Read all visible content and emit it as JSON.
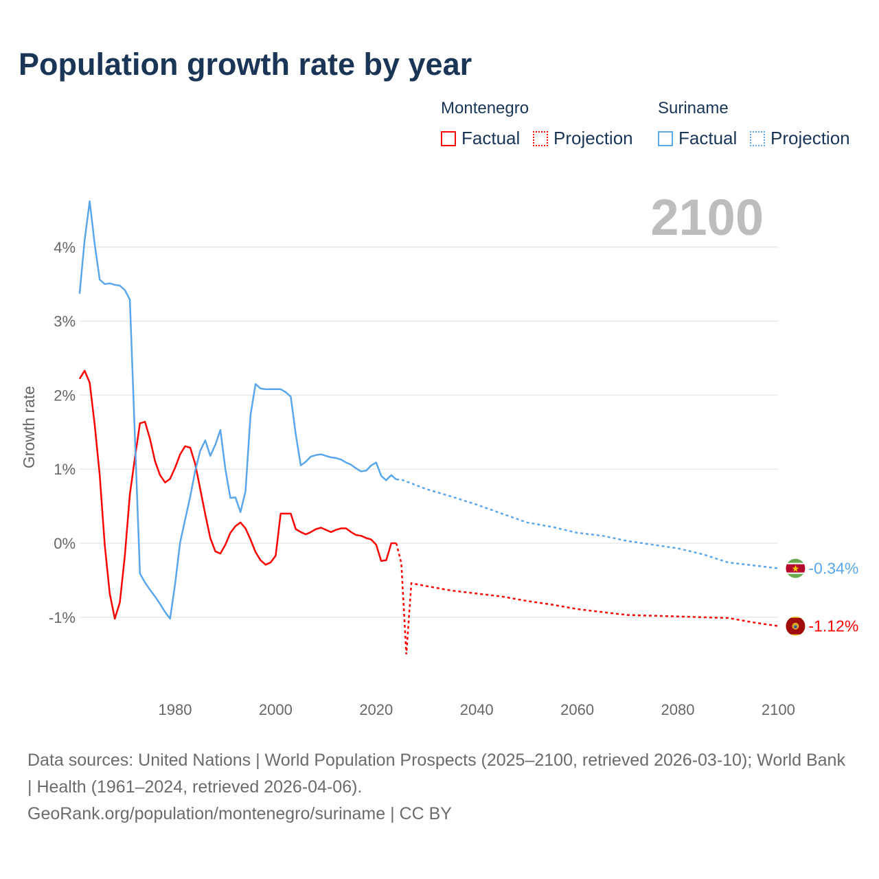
{
  "title": "Population growth rate by year",
  "legend": {
    "groups": [
      {
        "name": "Montenegro",
        "color": "#ff0000",
        "factual": "Factual",
        "projection": "Projection"
      },
      {
        "name": "Suriname",
        "color": "#5aa6eb",
        "factual": "Factual",
        "projection": "Projection"
      }
    ]
  },
  "year_watermark": "2100",
  "footer": {
    "sources": "Data sources: United Nations | World Population Prospects (2025–2100, retrieved 2026-03-10); World Bank | Health (1961–2024, retrieved 2026-04-06).",
    "credit": "GeoRank.org/population/montenegro/suriname | CC BY"
  },
  "chart_data": {
    "type": "line",
    "title": "Population growth rate by year",
    "xlabel": "",
    "ylabel": "Growth rate",
    "xlim": [
      1961,
      2100
    ],
    "ylim": [
      -1.8,
      4.8
    ],
    "x_ticks": [
      1980,
      2000,
      2020,
      2040,
      2060,
      2080,
      2100
    ],
    "y_ticks": [
      -1,
      0,
      1,
      2,
      3,
      4
    ],
    "y_tick_labels": [
      "-1%",
      "0%",
      "1%",
      "2%",
      "3%",
      "4%"
    ],
    "grid": true,
    "series": [
      {
        "name": "Montenegro",
        "color": "#ff0000",
        "flag": "montenegro-flag",
        "end_label": "-1.12%",
        "factual": {
          "x": [
            1961,
            1962,
            1963,
            1964,
            1965,
            1966,
            1967,
            1968,
            1969,
            1970,
            1971,
            1972,
            1973,
            1974,
            1975,
            1976,
            1977,
            1978,
            1979,
            1980,
            1981,
            1982,
            1983,
            1984,
            1985,
            1986,
            1987,
            1988,
            1989,
            1990,
            1991,
            1992,
            1993,
            1994,
            1995,
            1996,
            1997,
            1998,
            1999,
            2000,
            2001,
            2002,
            2003,
            2004,
            2005,
            2006,
            2007,
            2008,
            2009,
            2010,
            2011,
            2012,
            2013,
            2014,
            2015,
            2016,
            2017,
            2018,
            2019,
            2020,
            2021,
            2022,
            2023,
            2024
          ],
          "y": [
            2.22,
            2.33,
            2.17,
            1.6,
            0.92,
            -0.02,
            -0.68,
            -1.02,
            -0.8,
            -0.17,
            0.66,
            1.15,
            1.62,
            1.64,
            1.41,
            1.11,
            0.92,
            0.82,
            0.87,
            1.02,
            1.2,
            1.31,
            1.29,
            1.07,
            0.73,
            0.39,
            0.07,
            -0.11,
            -0.14,
            -0.02,
            0.14,
            0.23,
            0.28,
            0.2,
            0.05,
            -0.12,
            -0.23,
            -0.29,
            -0.26,
            -0.17,
            0.4,
            0.4,
            0.4,
            0.19,
            0.15,
            0.12,
            0.15,
            0.19,
            0.21,
            0.18,
            0.15,
            0.18,
            0.2,
            0.2,
            0.15,
            0.11,
            0.1,
            0.07,
            0.05,
            -0.02,
            -0.24,
            -0.23,
            0.0,
            0.0
          ]
        },
        "projection": {
          "x": [
            2024,
            2025,
            2026,
            2027,
            2030,
            2035,
            2040,
            2045,
            2050,
            2055,
            2060,
            2065,
            2070,
            2075,
            2080,
            2085,
            2090,
            2095,
            2100
          ],
          "y": [
            0.0,
            -0.27,
            -1.5,
            -0.54,
            -0.58,
            -0.64,
            -0.68,
            -0.72,
            -0.78,
            -0.83,
            -0.89,
            -0.93,
            -0.97,
            -0.98,
            -0.99,
            -1.0,
            -1.01,
            -1.07,
            -1.12
          ]
        }
      },
      {
        "name": "Suriname",
        "color": "#5aa6eb",
        "flag": "suriname-flag",
        "end_label": "-0.34%",
        "factual": {
          "x": [
            1961,
            1962,
            1963,
            1964,
            1965,
            1966,
            1967,
            1968,
            1969,
            1970,
            1971,
            1972,
            1973,
            1974,
            1975,
            1976,
            1977,
            1978,
            1979,
            1980,
            1981,
            1982,
            1983,
            1984,
            1985,
            1986,
            1987,
            1988,
            1989,
            1990,
            1991,
            1992,
            1993,
            1994,
            1995,
            1996,
            1997,
            1998,
            1999,
            2000,
            2001,
            2002,
            2003,
            2004,
            2005,
            2006,
            2007,
            2008,
            2009,
            2010,
            2011,
            2012,
            2013,
            2014,
            2015,
            2016,
            2017,
            2018,
            2019,
            2020,
            2021,
            2022,
            2023,
            2024
          ],
          "y": [
            3.37,
            4.09,
            4.62,
            4.04,
            3.56,
            3.5,
            3.51,
            3.49,
            3.48,
            3.42,
            3.29,
            1.45,
            -0.41,
            -0.53,
            -0.63,
            -0.72,
            -0.82,
            -0.93,
            -1.02,
            -0.55,
            0.01,
            0.32,
            0.63,
            0.98,
            1.25,
            1.39,
            1.18,
            1.33,
            1.53,
            1.0,
            0.61,
            0.62,
            0.42,
            0.7,
            1.73,
            2.15,
            2.09,
            2.08,
            2.08,
            2.08,
            2.08,
            2.04,
            1.98,
            1.47,
            1.05,
            1.1,
            1.17,
            1.19,
            1.2,
            1.18,
            1.16,
            1.15,
            1.13,
            1.09,
            1.06,
            1.01,
            0.97,
            0.98,
            1.05,
            1.09,
            0.91,
            0.85,
            0.92,
            0.86
          ]
        },
        "projection": {
          "x": [
            2024,
            2025,
            2030,
            2035,
            2040,
            2045,
            2050,
            2055,
            2060,
            2065,
            2070,
            2075,
            2080,
            2085,
            2090,
            2095,
            2100
          ],
          "y": [
            0.86,
            0.86,
            0.73,
            0.63,
            0.52,
            0.4,
            0.28,
            0.22,
            0.14,
            0.1,
            0.03,
            -0.02,
            -0.07,
            -0.15,
            -0.26,
            -0.3,
            -0.34
          ]
        }
      }
    ]
  }
}
